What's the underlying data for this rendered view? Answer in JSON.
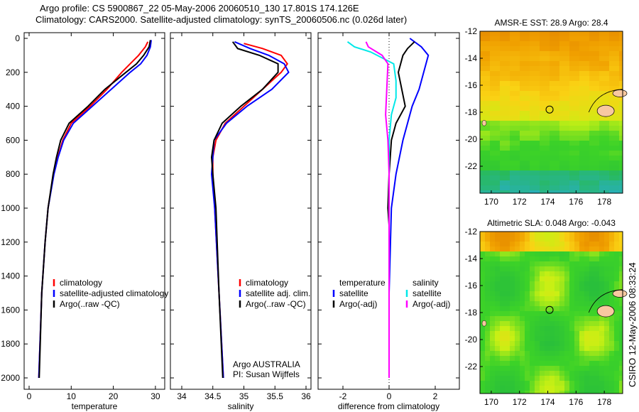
{
  "title_line1": "Argo profile: CS 5900867_22 05-May-2006 20060510_130 17.801S 174.126E",
  "title_line2": "Climatology: CARS2000. Satellite-adjusted climatology: synTS_20060506.nc (0.026d later)",
  "side_label": "CSIRO 12-May-2006 08:33:24",
  "colors": {
    "climatology": "#ff0000",
    "satellite": "#0000ff",
    "argo": "#000000",
    "sal_satellite": "#00e8e8",
    "sal_argo": "#ff00ff"
  },
  "chart_data": [
    {
      "type": "line",
      "xlabel": "temperature",
      "ylabel": "depth",
      "xlim": [
        -2,
        32
      ],
      "ylim": [
        2000,
        0
      ],
      "xticks": [
        "0",
        "10",
        "20",
        "30"
      ],
      "xtickvals": [
        0,
        10,
        20,
        30
      ],
      "yticks": [
        "0",
        "200",
        "400",
        "600",
        "800",
        "1000",
        "1200",
        "1400",
        "1600",
        "1800",
        "2000"
      ],
      "legend": [
        "climatology",
        "satellite-adjusted climatology",
        "Argo(..raw -QC)"
      ],
      "series": [
        {
          "name": "climatology",
          "color": "#ff0000",
          "depth": [
            20,
            50,
            100,
            150,
            200,
            300,
            400,
            500,
            600,
            700,
            800,
            1000,
            1200,
            1500,
            2000
          ],
          "values": [
            28.2,
            27.6,
            26,
            24,
            22,
            18.5,
            14.5,
            10,
            8,
            6.8,
            5.8,
            4.5,
            3.8,
            3,
            2.3
          ]
        },
        {
          "name": "satellite-adjusted climatology",
          "color": "#0000ff",
          "depth": [
            10,
            50,
            100,
            150,
            200,
            300,
            400,
            500,
            600,
            700,
            800,
            1000,
            1200,
            1500,
            2000
          ],
          "values": [
            29,
            28.8,
            28,
            26.5,
            24,
            19.5,
            15,
            10.5,
            8.2,
            6.9,
            5.9,
            4.5,
            3.8,
            3,
            2.3
          ]
        },
        {
          "name": "Argo(..raw -QC)",
          "color": "#000000",
          "depth": [
            10,
            50,
            100,
            150,
            200,
            300,
            400,
            500,
            600,
            700,
            800,
            1000,
            1200,
            1500,
            2000
          ],
          "values": [
            28.8,
            28.5,
            27.2,
            25.5,
            23,
            18,
            14,
            9.5,
            7.5,
            6.5,
            5.7,
            4.5,
            3.8,
            3,
            2.4
          ]
        }
      ]
    },
    {
      "type": "line",
      "xlabel": "salinity",
      "ylabel": "depth",
      "xlim": [
        33.8,
        36.1
      ],
      "ylim": [
        2000,
        0
      ],
      "xticks": [
        "34",
        "34.5",
        "35",
        "35.5",
        "36"
      ],
      "xtickvals": [
        34,
        34.5,
        35,
        35.5,
        36
      ],
      "legend": [
        "climatology",
        "satellite adj. clim.",
        "Argo(..raw -QC)"
      ],
      "annotation": [
        "Argo AUSTRALIA",
        "PI: Susan Wijffels"
      ],
      "series": [
        {
          "name": "climatology",
          "color": "#ff0000",
          "depth": [
            30,
            60,
            100,
            150,
            200,
            300,
            400,
            500,
            600,
            700,
            800,
            1000,
            1500,
            2000
          ],
          "values": [
            35.0,
            35.3,
            35.6,
            35.7,
            35.6,
            35.3,
            35.0,
            34.7,
            34.55,
            34.5,
            34.5,
            34.53,
            34.6,
            34.67
          ]
        },
        {
          "name": "satellite adj. clim.",
          "color": "#0000ff",
          "depth": [
            20,
            60,
            100,
            150,
            200,
            300,
            400,
            500,
            600,
            700,
            800,
            1000,
            1500,
            2000
          ],
          "values": [
            34.85,
            35.1,
            35.4,
            35.65,
            35.72,
            35.45,
            35.05,
            34.72,
            34.52,
            34.5,
            34.48,
            34.53,
            34.6,
            34.67
          ]
        },
        {
          "name": "Argo(..raw -QC)",
          "color": "#000000",
          "depth": [
            20,
            60,
            100,
            150,
            200,
            300,
            400,
            500,
            600,
            700,
            800,
            1000,
            1500,
            2000
          ],
          "values": [
            34.82,
            34.9,
            35.25,
            35.55,
            35.55,
            35.3,
            34.95,
            34.65,
            34.52,
            34.48,
            34.5,
            34.55,
            34.6,
            34.66
          ]
        }
      ]
    },
    {
      "type": "line",
      "xlabel": "difference from climatology",
      "ylabel": "depth",
      "xlim": [
        -3,
        3
      ],
      "ylim": [
        2000,
        0
      ],
      "xticks": [
        "-2",
        "0",
        "2"
      ],
      "xtickvals": [
        -2,
        0,
        2
      ],
      "legend": [
        "temperature",
        "satellite",
        "Argo(-adj)",
        "salinity",
        "satellite",
        "Argo(-adj)"
      ],
      "series": [
        {
          "name": "temperature satellite",
          "color": "#0000ff",
          "depth": [
            0,
            50,
            100,
            200,
            300,
            400,
            500,
            600,
            800,
            1000,
            1500,
            2000
          ],
          "values": [
            0.9,
            1.4,
            1.7,
            1.5,
            1.3,
            1.0,
            0.8,
            0.6,
            0.3,
            0.1,
            0,
            0
          ]
        },
        {
          "name": "temperature Argo(-adj)",
          "color": "#000000",
          "depth": [
            20,
            60,
            100,
            150,
            200,
            300,
            400,
            450,
            500,
            600,
            800,
            1000,
            1100,
            1500,
            2000
          ],
          "values": [
            1.1,
            0.8,
            0.6,
            0.5,
            0.4,
            0.55,
            0.7,
            0.5,
            0.3,
            0.1,
            0,
            -0.05,
            0,
            0,
            0
          ]
        },
        {
          "name": "salinity satellite",
          "color": "#00e8e8",
          "depth": [
            20,
            50,
            80,
            150,
            250,
            350,
            450,
            600,
            800,
            1000,
            2000
          ],
          "values": [
            -1.8,
            -1.5,
            -0.8,
            0.2,
            0.3,
            0.3,
            0.1,
            0,
            0,
            0,
            0
          ]
        },
        {
          "name": "salinity Argo(-adj)",
          "color": "#ff00ff",
          "depth": [
            20,
            50,
            100,
            150,
            300,
            450,
            600,
            800,
            2000
          ],
          "values": [
            -1,
            -0.9,
            -0.3,
            -0.05,
            -0.1,
            -0.15,
            -0.05,
            0,
            0
          ]
        }
      ]
    },
    {
      "type": "heatmap",
      "title": "AMSR-E SST: 28.9 Argo: 28.4",
      "xlim": [
        169.2,
        179.3
      ],
      "ylim": [
        -24,
        -12
      ],
      "xticks": [
        "170",
        "172",
        "174",
        "176",
        "178"
      ],
      "yticks": [
        "-12",
        "-14",
        "-16",
        "-18",
        "-20",
        "-22"
      ],
      "marker": [
        174.126,
        -17.8
      ]
    },
    {
      "type": "heatmap",
      "title": "Altimetric SLA: 0.048 Argo: -0.043",
      "xlim": [
        169.2,
        179.3
      ],
      "ylim": [
        -24,
        -12
      ],
      "xticks": [
        "170",
        "172",
        "174",
        "176",
        "178"
      ],
      "yticks": [
        "-12",
        "-14",
        "-16",
        "-18",
        "-20",
        "-22"
      ],
      "marker": [
        174.126,
        -17.8
      ]
    }
  ]
}
